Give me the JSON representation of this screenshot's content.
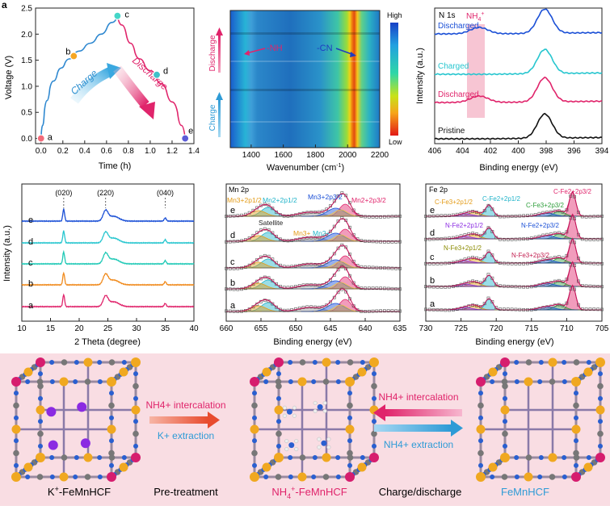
{
  "colors": {
    "blue": "#1a4fd6",
    "cyan": "#27c6cf",
    "pink": "#e0246b",
    "orange": "#f08a1c",
    "green": "#2e9e3b",
    "purple": "#8b2be2",
    "olive": "#8a8a00",
    "mn_orange": "#e39b17"
  },
  "panel_a": {
    "label": "a",
    "ylabel": "Voltage (V)",
    "xlabel": "Time (h)",
    "charge_text": "Charge",
    "discharge_text": "Discharge",
    "chart_data": {
      "type": "line",
      "x_ticks": [
        "0.0",
        "0.2",
        "0.4",
        "0.6",
        "0.8",
        "1.0",
        "1.2",
        "1.4"
      ],
      "y_ticks": [
        "0.0",
        "0.5",
        "1.0",
        "1.5",
        "2.0",
        "2.5"
      ],
      "xlim": [
        -0.05,
        1.4
      ],
      "ylim": [
        -0.1,
        2.5
      ],
      "charge": {
        "x": [
          0.0,
          0.03,
          0.08,
          0.15,
          0.22,
          0.3,
          0.4,
          0.5,
          0.6,
          0.7
        ],
        "y": [
          0.0,
          0.5,
          0.95,
          1.25,
          1.45,
          1.6,
          1.75,
          1.9,
          2.1,
          2.35
        ]
      },
      "discharge": {
        "x": [
          0.7,
          0.78,
          0.86,
          0.95,
          1.05,
          1.15,
          1.25,
          1.32
        ],
        "y": [
          2.35,
          2.0,
          1.65,
          1.4,
          1.2,
          0.9,
          0.5,
          0.0
        ]
      },
      "points": [
        {
          "name": "a",
          "x": 0.0,
          "y": 0.0,
          "color": "#f26b7a"
        },
        {
          "name": "b",
          "x": 0.3,
          "y": 1.58,
          "color": "#f5a623"
        },
        {
          "name": "c",
          "x": 0.7,
          "y": 2.35,
          "color": "#45d6c8"
        },
        {
          "name": "d",
          "x": 1.06,
          "y": 1.22,
          "color": "#3fc1c9"
        },
        {
          "name": "e",
          "x": 1.32,
          "y": 0.0,
          "color": "#5b5bd6"
        }
      ]
    }
  },
  "panel_b": {
    "xlabel_prefix": "Wavenumber (cm",
    "xlabel_sup": "-1",
    "xlabel_suffix": ")",
    "x_ticks": [
      "1400",
      "1600",
      "1800",
      "2000",
      "2200"
    ],
    "colorbar_high": "High",
    "colorbar_low": "Low",
    "nh_label": "-NH",
    "cn_label": "-CN",
    "discharge_label": "Discharge",
    "charge_label": "Charge"
  },
  "panel_c": {
    "title": "N 1s",
    "nh4_label": "NH",
    "nh4_sub": "4",
    "nh4_sup": "+",
    "ylabel": "Intensity (a.u.)",
    "xlabel": "Binding energy (eV)",
    "x_ticks": [
      "406",
      "404",
      "402",
      "400",
      "398",
      "396",
      "394"
    ],
    "chart_data": {
      "type": "line",
      "xlim": [
        406,
        394
      ],
      "series": [
        {
          "name": "Discharged",
          "color": "#1a4fd6",
          "peak": 398.1,
          "nh4": true
        },
        {
          "name": "Charged",
          "color": "#27c6cf",
          "peak": 398.1,
          "nh4": false
        },
        {
          "name": "Discharged",
          "color": "#e0246b",
          "peak": 398.1,
          "nh4": true
        },
        {
          "name": "Pristine",
          "color": "#111111",
          "peak": 398.1,
          "nh4": false
        }
      ]
    }
  },
  "panel_d": {
    "ylabel": "Intensity (a.u.)",
    "xlabel": "2 Theta (degree)",
    "x_ticks": [
      "10",
      "15",
      "20",
      "25",
      "30",
      "35",
      "40"
    ],
    "peak_labels": [
      "(020)",
      "(220)",
      "(040)"
    ],
    "chart_data": {
      "type": "line",
      "xlim": [
        10,
        40
      ],
      "peaks_2theta": [
        17.3,
        24.6,
        35.0
      ],
      "series": [
        {
          "name": "e",
          "color": "#1a4fd6"
        },
        {
          "name": "d",
          "color": "#27c6cf"
        },
        {
          "name": "c",
          "color": "#1fc9b6"
        },
        {
          "name": "b",
          "color": "#f08a1c"
        },
        {
          "name": "a",
          "color": "#e0246b"
        }
      ]
    }
  },
  "panel_e": {
    "title": "Mn 2p",
    "xlabel": "Binding energy (eV)",
    "x_ticks": [
      "660",
      "655",
      "650",
      "645",
      "640",
      "635"
    ],
    "series_names": [
      "e",
      "d",
      "c",
      "b",
      "a"
    ],
    "labels": {
      "mn3_12": "Mn3+2p1/2",
      "mn2_12": "Mn2+2p1/2",
      "mn3_32": "Mn3+2p3/2",
      "mn2_32": "Mn2+2p3/2",
      "satellite": "Satellite",
      "mn3": "Mn3+",
      "mn2": "Mn2+"
    }
  },
  "panel_f": {
    "title": "Fe 2p",
    "xlabel": "Binding energy (eV)",
    "x_ticks": [
      "730",
      "725",
      "720",
      "715",
      "710",
      "705"
    ],
    "series_names": [
      "e",
      "d",
      "c",
      "b",
      "a"
    ],
    "labels": {
      "c_fe3_12": "C-Fe3+2p1/2",
      "c_fe2_12": "C-Fe2+2p1/2",
      "c_fe3_32": "C-Fe3+2p3/2",
      "c_fe2_32": "C-Fe2+2p3/2",
      "n_fe2_12": "N-Fe2+2p1/2",
      "n_fe2_32": "N-Fe2+2p3/2",
      "n_fe3_12": "N-Fe3+2p1/2",
      "n_fe3_32": "N-Fe3+2p3/2"
    }
  },
  "scheme": {
    "left_name": "K",
    "left_sup": "+",
    "left_suffix": "-FeMnHCF",
    "mid_name": "NH",
    "mid_sub": "4",
    "mid_sup": "+",
    "mid_suffix": "-FeMnHCF",
    "right_name": "FeMnHCF",
    "pre_treatment": "Pre-treatment",
    "charge_discharge": "Charge/discharge",
    "arrow1_top": "NH4+ intercalation",
    "arrow1_bottom": "K+ extraction",
    "arrow2_top": "NH4+ intercalation",
    "arrow2_bottom": "NH4+ extraction"
  }
}
